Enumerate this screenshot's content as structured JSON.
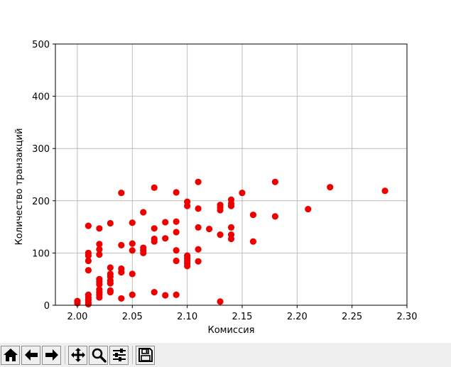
{
  "chart_data": {
    "type": "scatter",
    "title": "",
    "xlabel": "Комиссия",
    "ylabel": "Количество транзакций",
    "xlim": [
      1.98,
      2.3
    ],
    "ylim": [
      0,
      500
    ],
    "xticks": [
      "2.00",
      "2.05",
      "2.10",
      "2.15",
      "2.20",
      "2.25",
      "2.30"
    ],
    "yticks": [
      "0",
      "100",
      "200",
      "300",
      "400",
      "500"
    ],
    "grid": true,
    "marker_color": "#ee0000",
    "points": [
      [
        2.0,
        8
      ],
      [
        2.0,
        4
      ],
      [
        2.01,
        152
      ],
      [
        2.01,
        100
      ],
      [
        2.01,
        95
      ],
      [
        2.01,
        85
      ],
      [
        2.01,
        67
      ],
      [
        2.01,
        20
      ],
      [
        2.01,
        15
      ],
      [
        2.01,
        10
      ],
      [
        2.01,
        5
      ],
      [
        2.01,
        2
      ],
      [
        2.02,
        147
      ],
      [
        2.02,
        117
      ],
      [
        2.02,
        107
      ],
      [
        2.02,
        97
      ],
      [
        2.02,
        50
      ],
      [
        2.02,
        45
      ],
      [
        2.02,
        40
      ],
      [
        2.02,
        30
      ],
      [
        2.02,
        25
      ],
      [
        2.02,
        20
      ],
      [
        2.02,
        15
      ],
      [
        2.03,
        157
      ],
      [
        2.03,
        72
      ],
      [
        2.03,
        60
      ],
      [
        2.03,
        55
      ],
      [
        2.03,
        47
      ],
      [
        2.03,
        42
      ],
      [
        2.03,
        28
      ],
      [
        2.03,
        25
      ],
      [
        2.04,
        215
      ],
      [
        2.04,
        115
      ],
      [
        2.04,
        70
      ],
      [
        2.04,
        63
      ],
      [
        2.04,
        13
      ],
      [
        2.05,
        158
      ],
      [
        2.05,
        118
      ],
      [
        2.05,
        105
      ],
      [
        2.05,
        60
      ],
      [
        2.05,
        20
      ],
      [
        2.06,
        178
      ],
      [
        2.06,
        110
      ],
      [
        2.06,
        105
      ],
      [
        2.06,
        100
      ],
      [
        2.07,
        225
      ],
      [
        2.07,
        147
      ],
      [
        2.07,
        127
      ],
      [
        2.07,
        122
      ],
      [
        2.07,
        25
      ],
      [
        2.08,
        159
      ],
      [
        2.08,
        128
      ],
      [
        2.08,
        19
      ],
      [
        2.09,
        216
      ],
      [
        2.09,
        160
      ],
      [
        2.09,
        140
      ],
      [
        2.09,
        105
      ],
      [
        2.09,
        85
      ],
      [
        2.09,
        20
      ],
      [
        2.1,
        198
      ],
      [
        2.1,
        190
      ],
      [
        2.1,
        95
      ],
      [
        2.1,
        90
      ],
      [
        2.1,
        85
      ],
      [
        2.1,
        80
      ],
      [
        2.1,
        75
      ],
      [
        2.11,
        236
      ],
      [
        2.11,
        185
      ],
      [
        2.11,
        149
      ],
      [
        2.11,
        107
      ],
      [
        2.11,
        84
      ],
      [
        2.12,
        146
      ],
      [
        2.13,
        192
      ],
      [
        2.13,
        187
      ],
      [
        2.13,
        182
      ],
      [
        2.13,
        135
      ],
      [
        2.13,
        7
      ],
      [
        2.14,
        202
      ],
      [
        2.14,
        195
      ],
      [
        2.14,
        190
      ],
      [
        2.14,
        149
      ],
      [
        2.14,
        135
      ],
      [
        2.14,
        127
      ],
      [
        2.15,
        215
      ],
      [
        2.16,
        173
      ],
      [
        2.16,
        122
      ],
      [
        2.18,
        236
      ],
      [
        2.18,
        170
      ],
      [
        2.21,
        184
      ],
      [
        2.23,
        226
      ],
      [
        2.28,
        219
      ]
    ]
  },
  "toolbar": {
    "buttons": [
      {
        "name": "home-button",
        "icon": "home-icon"
      },
      {
        "name": "back-button",
        "icon": "arrow-left-icon"
      },
      {
        "name": "forward-button",
        "icon": "arrow-right-icon"
      },
      {
        "name": "pan-button",
        "icon": "move-icon"
      },
      {
        "name": "zoom-button",
        "icon": "magnifier-icon"
      },
      {
        "name": "configure-subplots-button",
        "icon": "sliders-icon"
      },
      {
        "name": "save-button",
        "icon": "floppy-disk-icon"
      }
    ]
  }
}
